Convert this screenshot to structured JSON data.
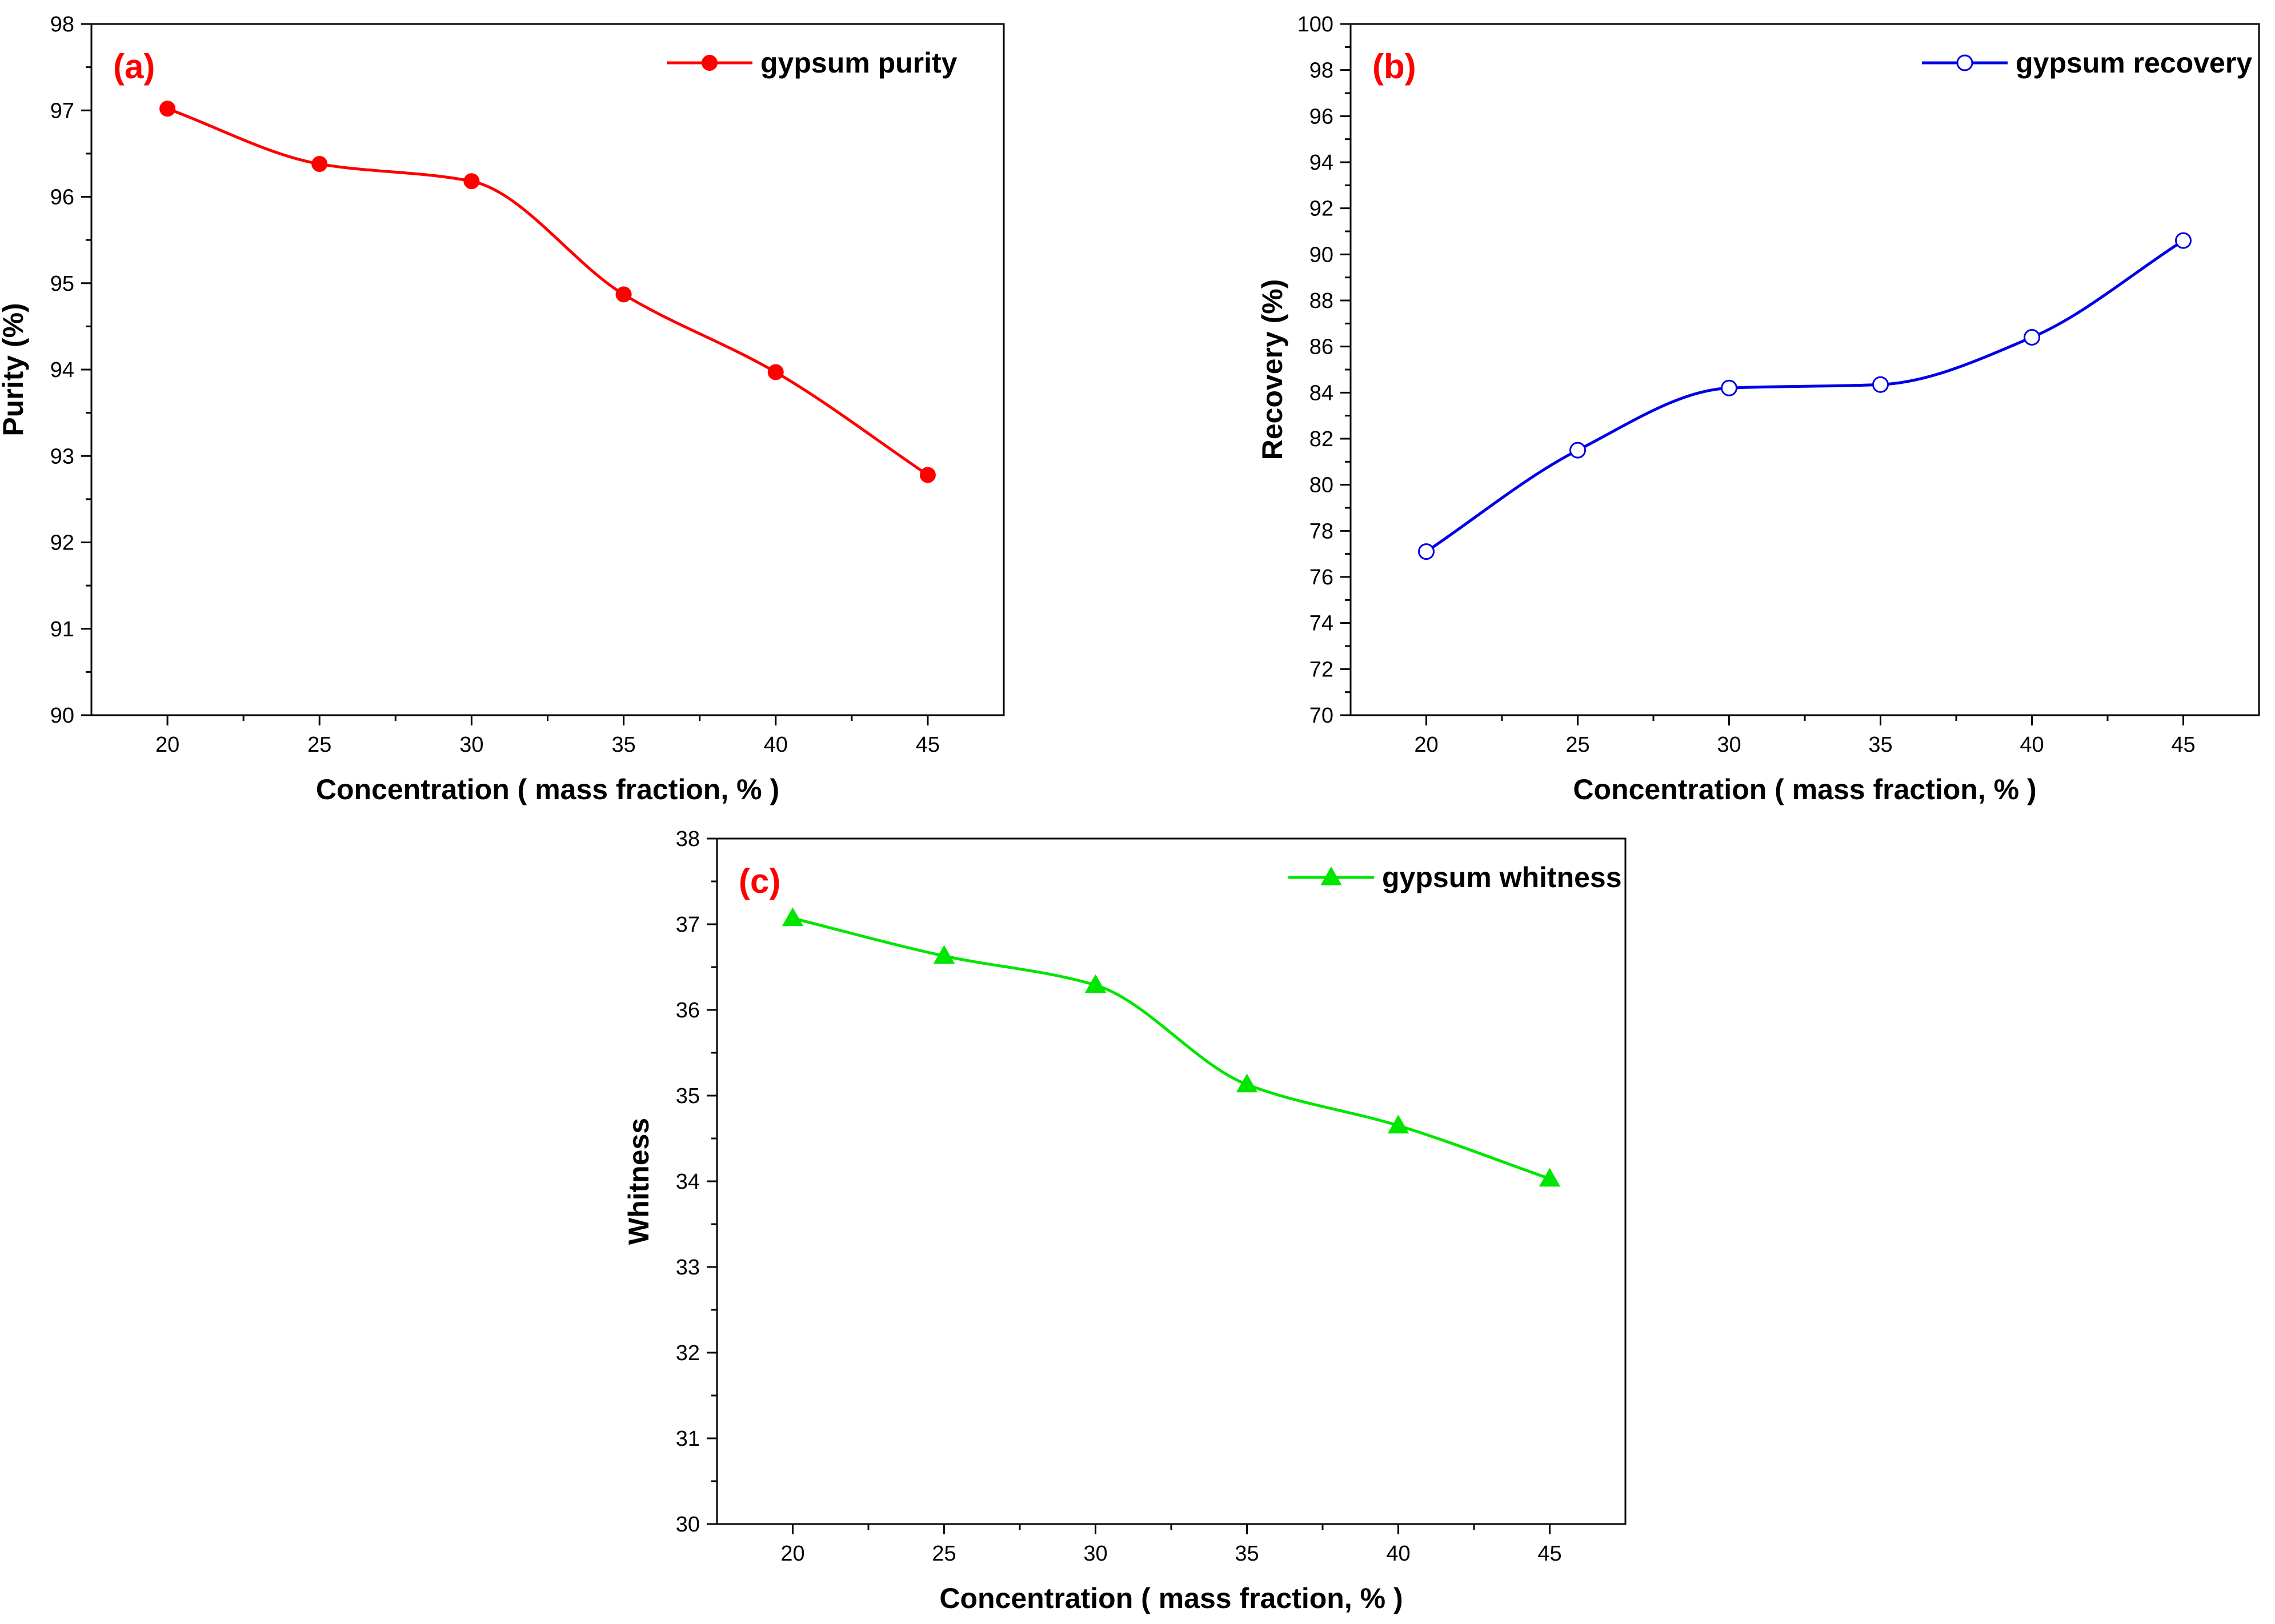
{
  "chart_data": [
    {
      "id": "a",
      "type": "line",
      "panel_label": "(a)",
      "xlabel": "Concentration ( mass fraction, % )",
      "ylabel": "Purity (%)",
      "xlim": [
        17.5,
        47.5
      ],
      "ylim": [
        90,
        98
      ],
      "xticks": [
        20,
        25,
        30,
        35,
        40,
        45
      ],
      "yticks": [
        90,
        91,
        92,
        93,
        94,
        95,
        96,
        97,
        98
      ],
      "grid": false,
      "legend_position": "top-right",
      "color": "#ff0000",
      "marker": "filled-circle",
      "series": [
        {
          "name": "gypsum purity",
          "x": [
            20,
            25,
            30,
            35,
            40,
            45
          ],
          "y": [
            97.02,
            96.38,
            96.18,
            94.87,
            93.97,
            92.78
          ]
        }
      ]
    },
    {
      "id": "b",
      "type": "line",
      "panel_label": "(b)",
      "xlabel": "Concentration ( mass fraction, % )",
      "ylabel": "Recovery (%)",
      "xlim": [
        17.5,
        47.5
      ],
      "ylim": [
        70,
        100
      ],
      "xticks": [
        20,
        25,
        30,
        35,
        40,
        45
      ],
      "yticks": [
        70,
        72,
        74,
        76,
        78,
        80,
        82,
        84,
        86,
        88,
        90,
        92,
        94,
        96,
        98,
        100
      ],
      "grid": false,
      "legend_position": "top-right",
      "color": "#0000e6",
      "marker": "open-circle",
      "series": [
        {
          "name": "gypsum recovery",
          "x": [
            20,
            25,
            30,
            35,
            40,
            45
          ],
          "y": [
            77.1,
            81.5,
            84.2,
            84.35,
            86.4,
            90.6
          ]
        }
      ]
    },
    {
      "id": "c",
      "type": "line",
      "panel_label": "(c)",
      "xlabel": "Concentration ( mass fraction, % )",
      "ylabel": "Whitness",
      "xlim": [
        17.5,
        47.5
      ],
      "ylim": [
        30,
        38
      ],
      "xticks": [
        20,
        25,
        30,
        35,
        40,
        45
      ],
      "yticks": [
        30,
        31,
        32,
        33,
        34,
        35,
        36,
        37,
        38
      ],
      "grid": false,
      "legend_position": "top-right",
      "color": "#00e600",
      "marker": "filled-triangle",
      "series": [
        {
          "name": "gypsum whitness",
          "x": [
            20,
            25,
            30,
            35,
            40,
            45
          ],
          "y": [
            37.07,
            36.63,
            36.29,
            35.13,
            34.65,
            34.03
          ]
        }
      ]
    }
  ]
}
